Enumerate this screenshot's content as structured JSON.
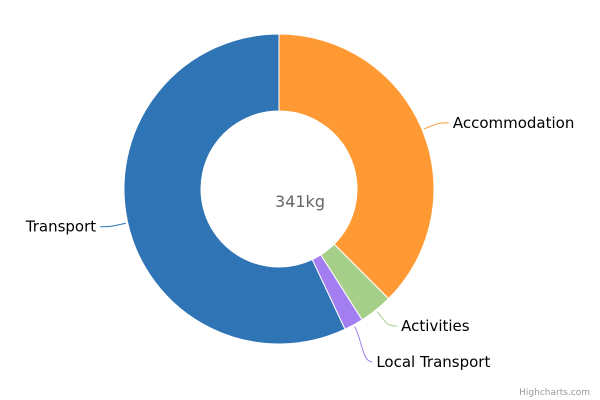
{
  "chart_data": {
    "type": "pie",
    "variant": "donut",
    "center_label": "341kg",
    "slices": [
      {
        "name": "Accommodation",
        "value": 37.5,
        "color": "#ff9933"
      },
      {
        "name": "Activities",
        "value": 3.5,
        "color": "#a6d08a"
      },
      {
        "name": "Local Transport",
        "value": 2.0,
        "color": "#a37ef0"
      },
      {
        "name": "Transport",
        "value": 57.0,
        "color": "#2f74b5"
      }
    ]
  },
  "credits": "Highcharts.com"
}
